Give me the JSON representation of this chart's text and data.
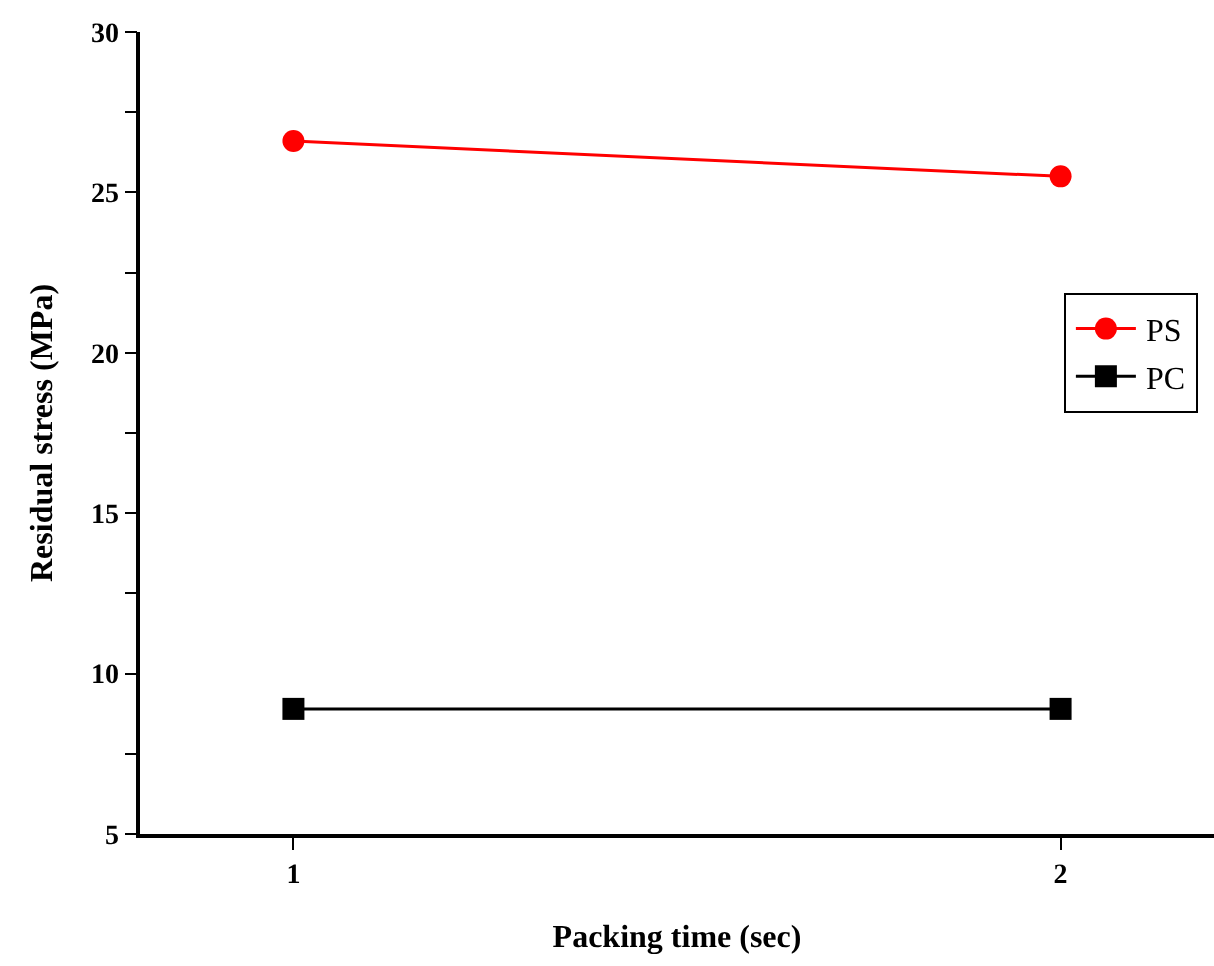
{
  "chart_data": {
    "type": "line",
    "xlabel": "Packing time (sec)",
    "ylabel": "Residual stress (MPa)",
    "x": [
      1,
      2
    ],
    "series": [
      {
        "name": "PS",
        "color": "#ff0000",
        "values": [
          26.6,
          25.5
        ],
        "marker": "circle"
      },
      {
        "name": "PC",
        "color": "#000000",
        "values": [
          8.9,
          8.9
        ],
        "marker": "square"
      }
    ],
    "xlim": [
      0.8,
      2.2
    ],
    "xticks": [
      1,
      2
    ],
    "ylim": [
      5,
      30
    ],
    "yticks": [
      5,
      {
        "value": 7.5,
        "label": null
      },
      10,
      {
        "value": 12.5,
        "label": null
      },
      15,
      {
        "value": 17.5,
        "label": null
      },
      20,
      {
        "value": 22.5,
        "label": null
      },
      25,
      {
        "value": 27.5,
        "label": null
      },
      30
    ],
    "legend": "right",
    "line_style": "solid"
  }
}
